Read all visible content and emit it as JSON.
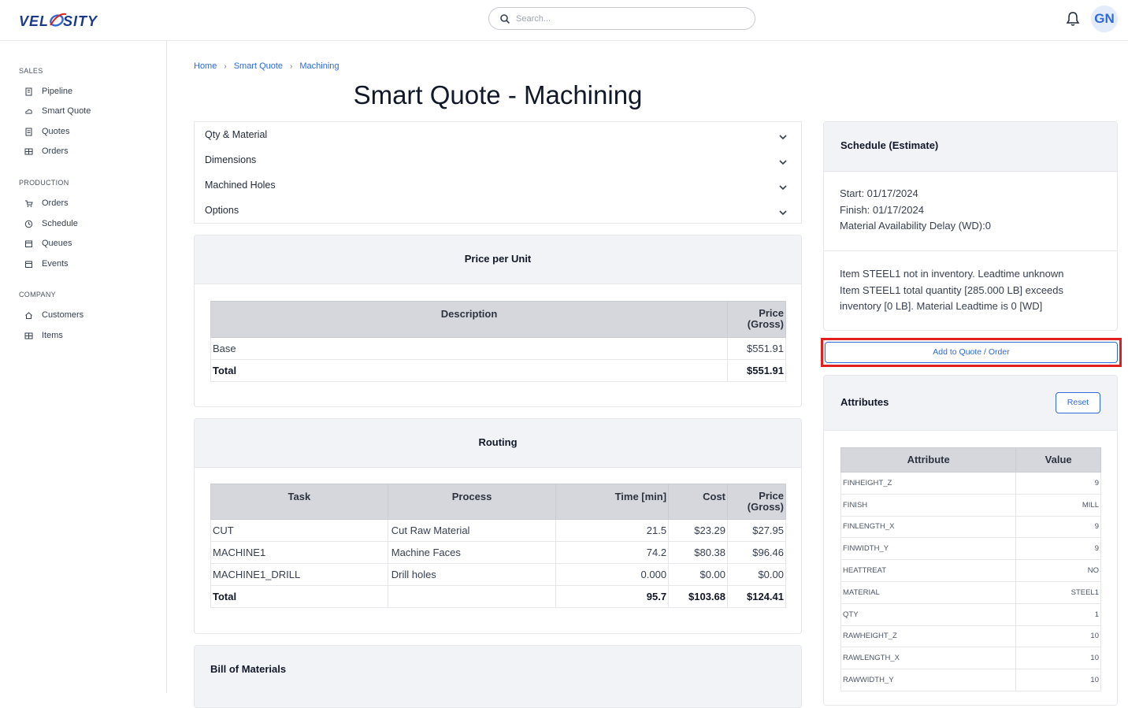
{
  "header": {
    "logo_text": "VELOSITY",
    "search_placeholder": "Search...",
    "avatar_initials": "GN"
  },
  "sidebar": {
    "sections": [
      {
        "label": "SALES",
        "items": [
          {
            "label": "Pipeline",
            "icon": "building-icon"
          },
          {
            "label": "Smart Quote",
            "icon": "cloud-icon"
          },
          {
            "label": "Quotes",
            "icon": "document-icon"
          },
          {
            "label": "Orders",
            "icon": "grid-icon"
          }
        ]
      },
      {
        "label": "PRODUCTION",
        "items": [
          {
            "label": "Orders",
            "icon": "cart-icon"
          },
          {
            "label": "Schedule",
            "icon": "clock-icon"
          },
          {
            "label": "Queues",
            "icon": "calendar-icon"
          },
          {
            "label": "Events",
            "icon": "calendar-icon"
          }
        ]
      },
      {
        "label": "COMPANY",
        "items": [
          {
            "label": "Customers",
            "icon": "home-icon"
          },
          {
            "label": "Items",
            "icon": "grid-icon"
          }
        ]
      }
    ]
  },
  "breadcrumb": [
    "Home",
    "Smart Quote",
    "Machining"
  ],
  "page_title": "Smart Quote - Machining",
  "accordion": [
    "Qty & Material",
    "Dimensions",
    "Machined Holes",
    "Options"
  ],
  "price_per_unit": {
    "title": "Price per Unit",
    "headers": [
      "Description",
      "Price\n(Gross)"
    ],
    "rows": [
      [
        "Base",
        "$551.91"
      ]
    ],
    "total": [
      "Total",
      "$551.91"
    ]
  },
  "routing": {
    "title": "Routing",
    "headers": [
      "Task",
      "Process",
      "Time [min]",
      "Cost",
      "Price\n(Gross)"
    ],
    "rows": [
      [
        "CUT",
        "Cut Raw Material",
        "21.5",
        "$23.29",
        "$27.95"
      ],
      [
        "MACHINE1",
        "Machine Faces",
        "74.2",
        "$80.38",
        "$96.46"
      ],
      [
        "MACHINE1_DRILL",
        "Drill holes",
        "0.000",
        "$0.00",
        "$0.00"
      ]
    ],
    "total": [
      "Total",
      "",
      "95.7",
      "$103.68",
      "$124.41"
    ]
  },
  "bom": {
    "title": "Bill of Materials"
  },
  "schedule": {
    "title": "Schedule (Estimate)",
    "lines": [
      "Start: 01/17/2024",
      "Finish: 01/17/2024",
      "Material Availability Delay (WD):0"
    ],
    "notes": [
      "Item STEEL1 not in inventory. Leadtime unknown",
      "Item STEEL1 total quantity [285.000 LB] exceeds",
      "inventory [0 LB]. Material Leadtime is 0 [WD]"
    ]
  },
  "add_button_label": "Add to Quote / Order",
  "attributes": {
    "title": "Attributes",
    "reset_label": "Reset",
    "headers": [
      "Attribute",
      "Value"
    ],
    "rows": [
      [
        "FINHEIGHT_Z",
        "9"
      ],
      [
        "FINISH",
        "MILL"
      ],
      [
        "FINLENGTH_X",
        "9"
      ],
      [
        "FINWIDTH_Y",
        "9"
      ],
      [
        "HEATTREAT",
        "NO"
      ],
      [
        "MATERIAL",
        "STEEL1"
      ],
      [
        "QTY",
        "1"
      ],
      [
        "RAWHEIGHT_Z",
        "10"
      ],
      [
        "RAWLENGTH_X",
        "10"
      ],
      [
        "RAWWIDTH_Y",
        "10"
      ]
    ]
  },
  "colors": {
    "accent": "#2f6ad9",
    "highlight": "#e0201e"
  }
}
